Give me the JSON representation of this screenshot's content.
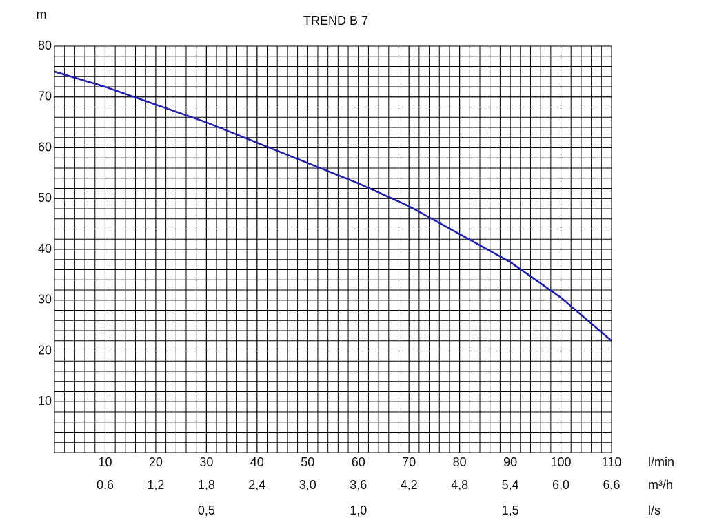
{
  "chart_data": {
    "type": "line",
    "title": "TREND B 7",
    "y_label": "m",
    "x_label": "l/min",
    "x2_label": "m³/h",
    "x3_label": "l/s",
    "xlim": [
      0,
      110
    ],
    "ylim": [
      0,
      80
    ],
    "xticks": [
      10,
      20,
      30,
      40,
      50,
      60,
      70,
      80,
      90,
      100,
      110
    ],
    "x2ticks": [
      {
        "value": 10,
        "label": "0,6"
      },
      {
        "value": 20,
        "label": "1,2"
      },
      {
        "value": 30,
        "label": "1,8"
      },
      {
        "value": 40,
        "label": "2,4"
      },
      {
        "value": 50,
        "label": "3,0"
      },
      {
        "value": 60,
        "label": "3,6"
      },
      {
        "value": 70,
        "label": "4,2"
      },
      {
        "value": 80,
        "label": "4,8"
      },
      {
        "value": 90,
        "label": "5,4"
      },
      {
        "value": 100,
        "label": "6,0"
      },
      {
        "value": 110,
        "label": "6,6"
      }
    ],
    "x3ticks": [
      {
        "value": 30,
        "label": "0,5"
      },
      {
        "value": 60,
        "label": "1,0"
      },
      {
        "value": 90,
        "label": "1,5"
      }
    ],
    "yticks": [
      10,
      20,
      30,
      40,
      50,
      60,
      70,
      80
    ],
    "grid": true,
    "minor_grid_divisions": 5,
    "series": [
      {
        "color": "#1a1acc",
        "x": [
          0,
          10,
          20,
          30,
          40,
          50,
          60,
          70,
          80,
          90,
          100,
          110
        ],
        "values": [
          75,
          72,
          68.5,
          65,
          61,
          57,
          53,
          48.5,
          43,
          37.5,
          30.5,
          22
        ]
      }
    ]
  }
}
